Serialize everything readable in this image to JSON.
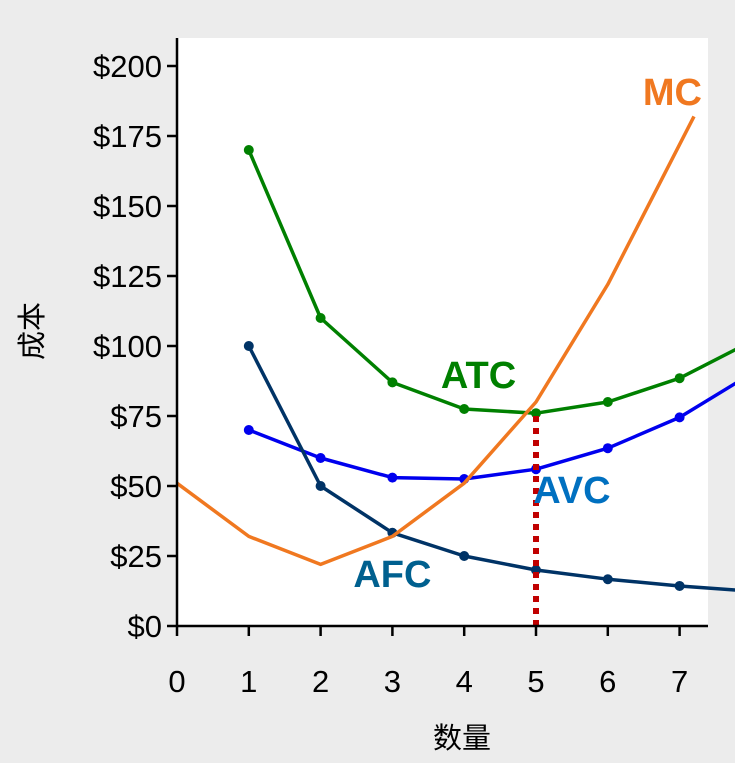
{
  "chart_data": {
    "type": "line",
    "xlabel": "数量",
    "ylabel": "成本",
    "xlim": [
      0,
      7.8
    ],
    "ylim": [
      0,
      210
    ],
    "x_ticks": [
      0,
      1,
      2,
      3,
      4,
      5,
      6,
      7
    ],
    "x_tick_labels": [
      "0",
      "1",
      "2",
      "3",
      "4",
      "5",
      "6",
      "7"
    ],
    "y_ticks": [
      0,
      25,
      50,
      75,
      100,
      125,
      150,
      175,
      200
    ],
    "y_tick_labels": [
      "$0",
      "$25",
      "$50",
      "$75",
      "$100",
      "$125",
      "$150",
      "$175",
      "$200"
    ],
    "grid": false,
    "series": [
      {
        "name": "ATC",
        "color": "#008000",
        "markers": true,
        "points": [
          [
            1,
            170
          ],
          [
            2,
            110
          ],
          [
            3,
            87
          ],
          [
            4,
            77.5
          ],
          [
            5,
            76
          ],
          [
            6,
            80
          ],
          [
            7,
            88.5
          ],
          [
            7.8,
            99
          ]
        ]
      },
      {
        "name": "AVC",
        "color": "#0000ee",
        "markers": true,
        "points": [
          [
            1,
            70
          ],
          [
            2,
            60
          ],
          [
            3,
            53
          ],
          [
            4,
            52.5
          ],
          [
            5,
            56
          ],
          [
            6,
            63.5
          ],
          [
            7,
            74.5
          ],
          [
            7.8,
            87
          ]
        ]
      },
      {
        "name": "AFC",
        "color": "#003366",
        "markers": true,
        "points": [
          [
            1,
            100
          ],
          [
            2,
            50
          ],
          [
            3,
            33.3
          ],
          [
            4,
            25
          ],
          [
            5,
            20
          ],
          [
            6,
            16.7
          ],
          [
            7,
            14.3
          ],
          [
            7.8,
            12.8
          ]
        ]
      },
      {
        "name": "MC",
        "color": "#f07820",
        "markers": false,
        "points": [
          [
            0,
            51
          ],
          [
            1,
            32
          ],
          [
            2,
            22
          ],
          [
            3,
            32
          ],
          [
            4,
            51
          ],
          [
            5,
            80
          ],
          [
            6,
            122
          ],
          [
            7.2,
            182
          ]
        ]
      }
    ],
    "series_labels": [
      {
        "text": "ATC",
        "color": "#008000",
        "x": 4.2,
        "y": 85
      },
      {
        "text": "AVC",
        "color": "#0070c0",
        "x": 5.5,
        "y": 44
      },
      {
        "text": "AFC",
        "color": "#00608f",
        "x": 3.0,
        "y": 14
      },
      {
        "text": "MC",
        "color": "#f07820",
        "x": 6.9,
        "y": 186
      }
    ],
    "annotations": [
      {
        "type": "vertical-dotted-line",
        "x": 5,
        "y_from": 0,
        "y_to": 76,
        "color": "#c00000"
      }
    ]
  }
}
